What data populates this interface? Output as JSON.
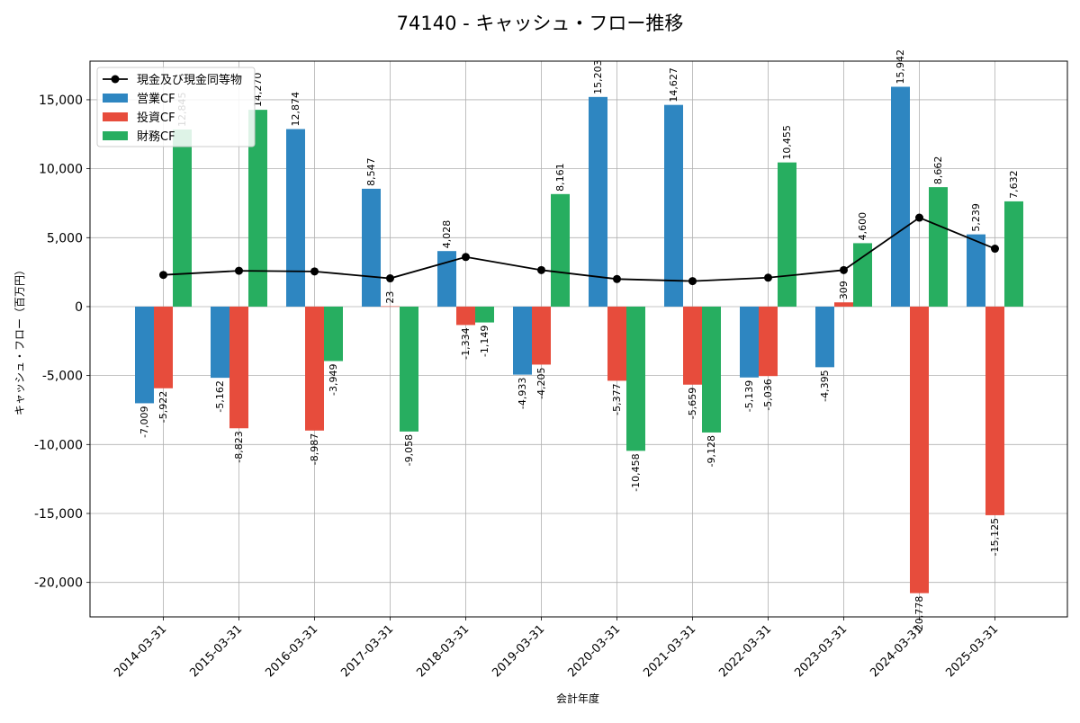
{
  "chart_data": {
    "type": "bar",
    "title": "74140 - キャッシュ・フロー推移",
    "xlabel": "会計年度",
    "ylabel": "キャッシュ・フロー（百万円）",
    "categories": [
      "2014-03-31",
      "2015-03-31",
      "2016-03-31",
      "2017-03-31",
      "2018-03-31",
      "2019-03-31",
      "2020-03-31",
      "2021-03-31",
      "2022-03-31",
      "2023-03-31",
      "2024-03-31",
      "2025-03-31"
    ],
    "ylim": [
      -22500,
      17800
    ],
    "yticks": [
      -20000,
      -15000,
      -10000,
      -5000,
      0,
      5000,
      10000,
      15000
    ],
    "ytick_labels": [
      "-20,000",
      "-15,000",
      "-10,000",
      "-5,000",
      "0",
      "5,000",
      "10,000",
      "15,000"
    ],
    "grid": true,
    "legend_position": "top-left",
    "series": [
      {
        "name": "営業CF",
        "kind": "bar",
        "color": "#2e86c1",
        "values": [
          -7009,
          -5162,
          12874,
          8547,
          4028,
          -4933,
          15203,
          14627,
          -5139,
          -4395,
          15942,
          5239
        ],
        "labels": [
          "-7,009",
          "-5,162",
          "12,874",
          "8,547",
          "4,028",
          "-4,933",
          "15,203",
          "14,627",
          "-5,139",
          "-4,395",
          "15,942",
          "5,239"
        ]
      },
      {
        "name": "投資CF",
        "kind": "bar",
        "color": "#e74c3c",
        "values": [
          -5922,
          -8823,
          -8987,
          23,
          -1334,
          -4205,
          -5377,
          -5659,
          -5036,
          309,
          -20778,
          -15125
        ],
        "labels": [
          "-5,922",
          "-8,823",
          "-8,987",
          "23",
          "-1,334",
          "-4,205",
          "-5,377",
          "-5,659",
          "-5,036",
          "309",
          "-20,778",
          "-15,125"
        ]
      },
      {
        "name": "財務CF",
        "kind": "bar",
        "color": "#27ae60",
        "values": [
          12845,
          14270,
          -3949,
          -9058,
          -1149,
          8161,
          -10458,
          -9128,
          10455,
          4600,
          8662,
          7632
        ],
        "labels": [
          "12,845",
          "14,270",
          "-3,949",
          "-9,058",
          "-1,149",
          "8,161",
          "-10,458",
          "-9,128",
          "10,455",
          "4,600",
          "8,662",
          "7,632"
        ]
      },
      {
        "name": "現金及び現金同等物",
        "kind": "line",
        "color": "#000000",
        "values": [
          2300,
          2600,
          2550,
          2050,
          3600,
          2650,
          2000,
          1850,
          2100,
          2650,
          6450,
          4200
        ]
      }
    ]
  }
}
